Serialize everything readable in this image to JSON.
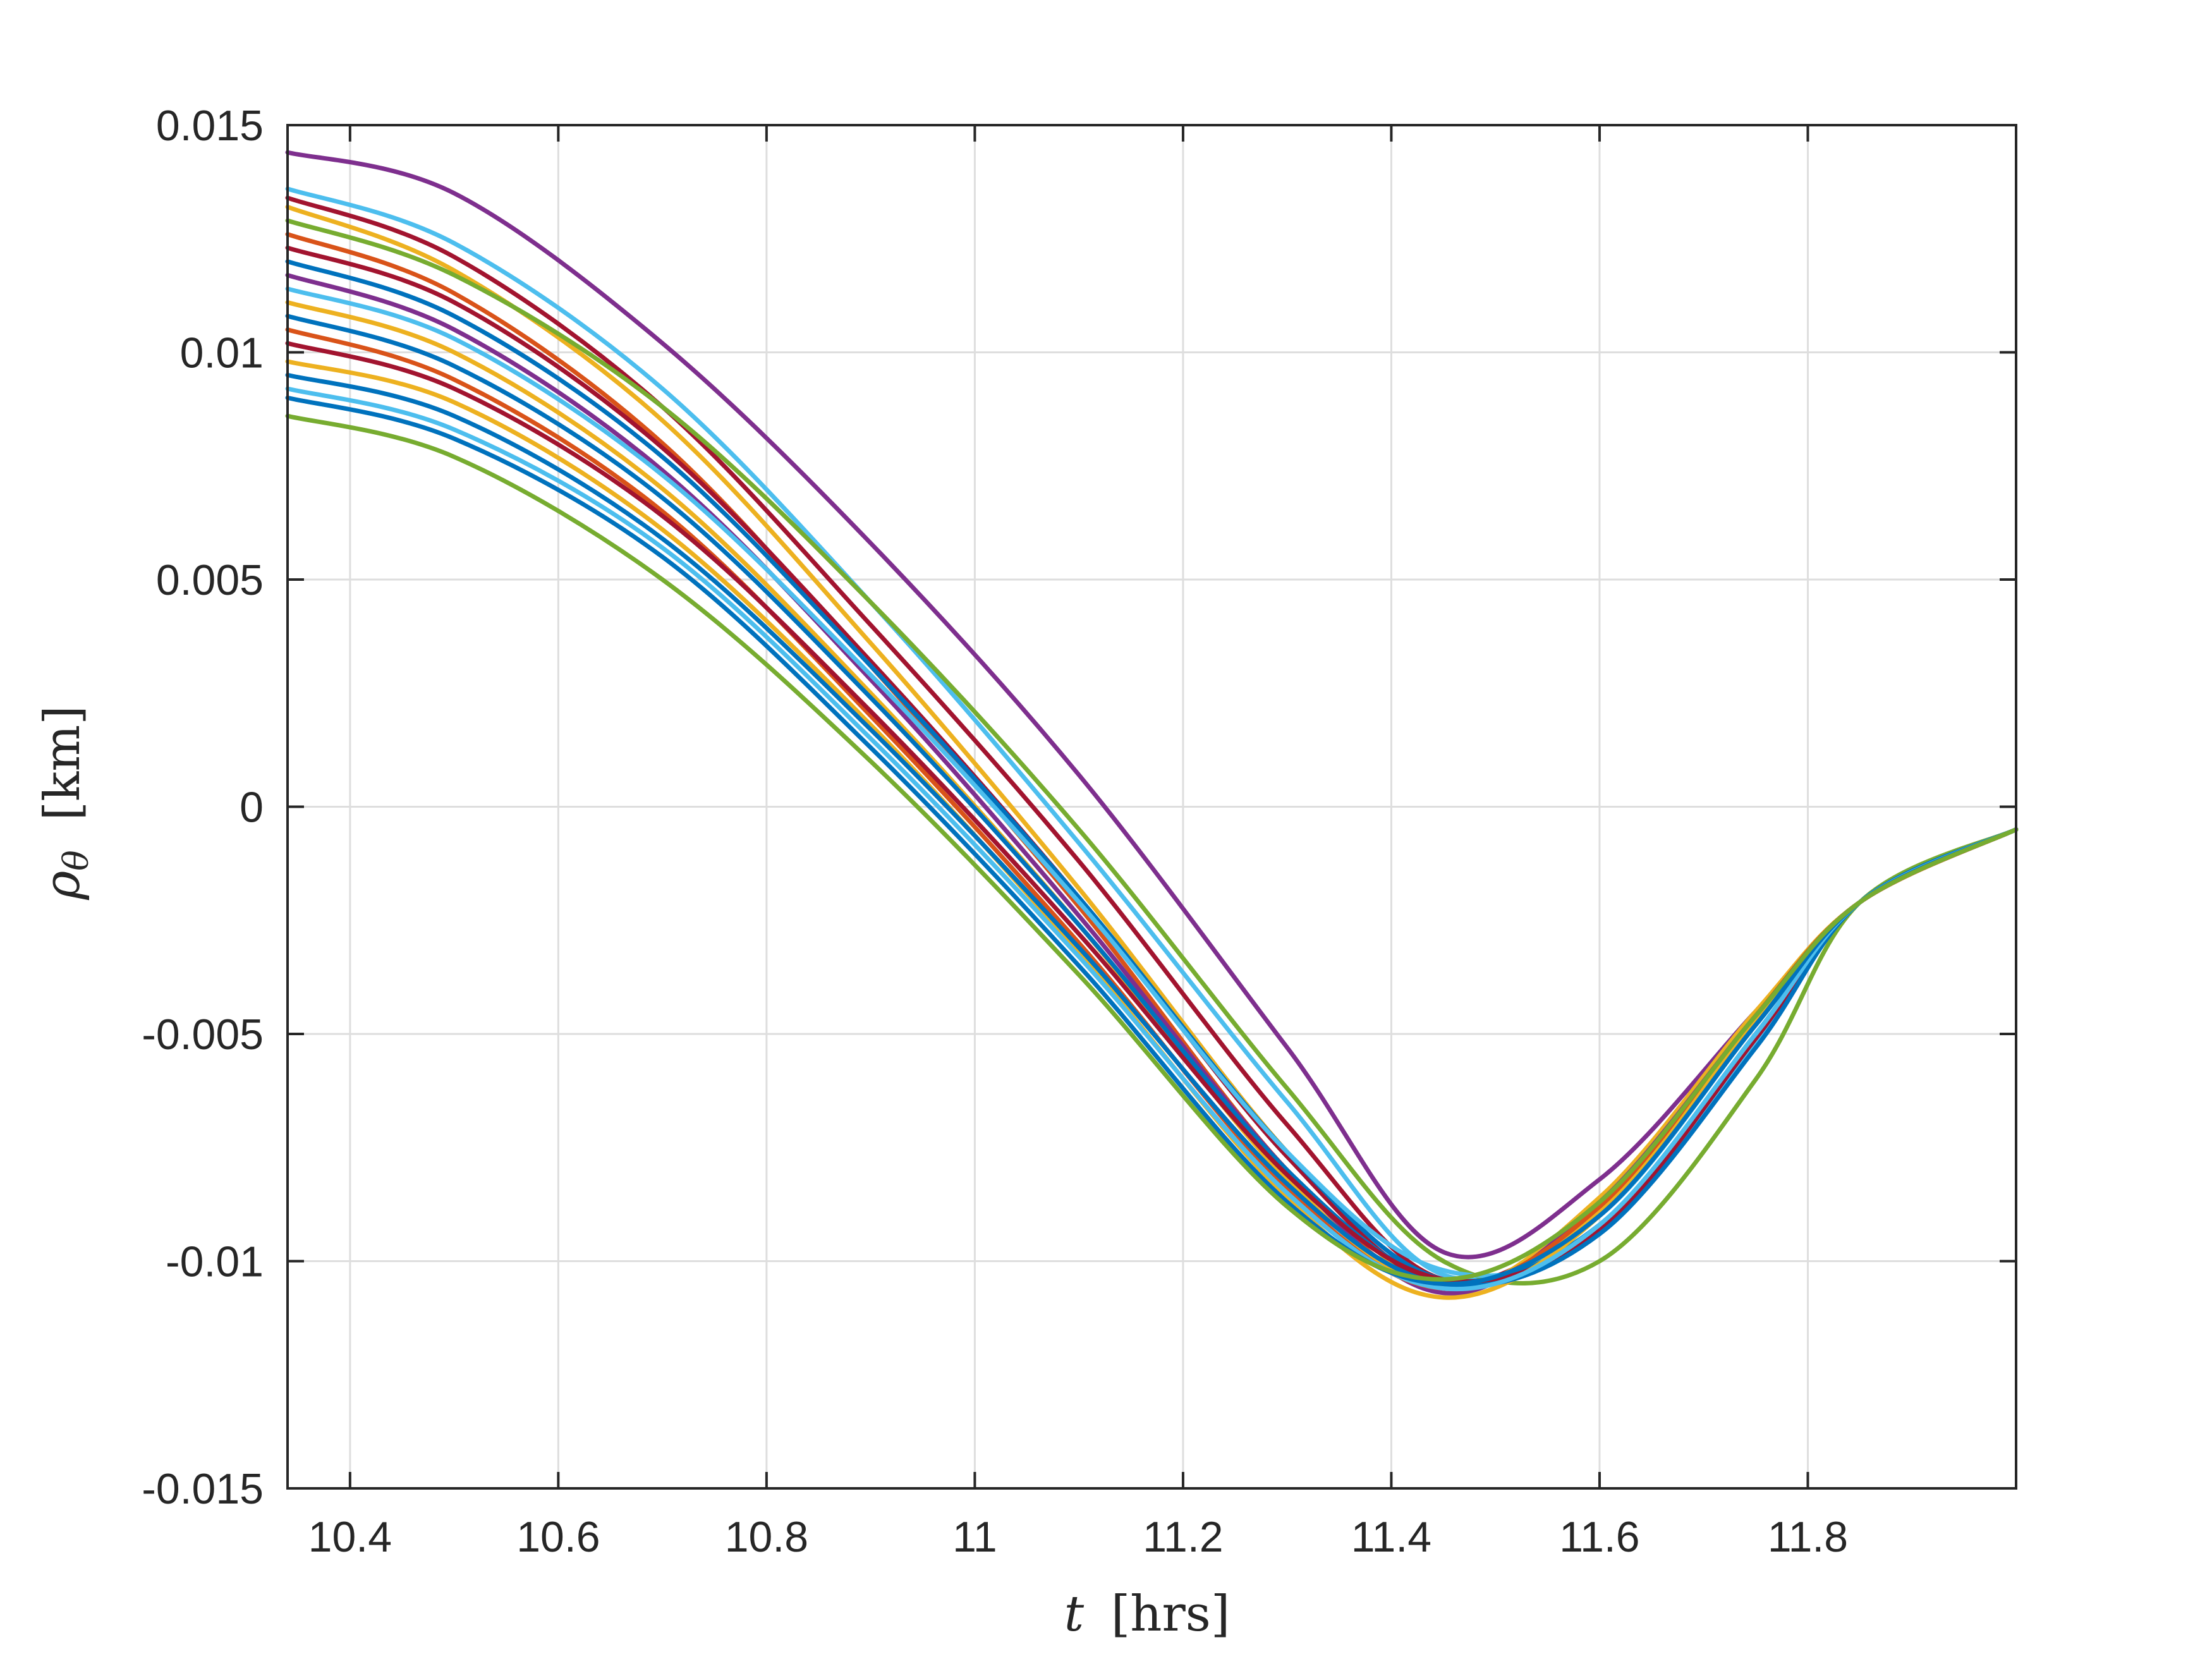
{
  "chart_data": {
    "type": "line",
    "xlabel_var": "t",
    "xlabel_unit": "[hrs]",
    "ylabel_var": "ρ",
    "ylabel_sub": "θ",
    "ylabel_unit": "[km]",
    "xlim": [
      10.34,
      12.0
    ],
    "ylim": [
      -0.015,
      0.015
    ],
    "grid": true,
    "xticks": [
      10.4,
      10.6,
      10.8,
      11,
      11.2,
      11.4,
      11.6,
      11.8
    ],
    "xtick_labels": [
      "10.4",
      "10.6",
      "10.8",
      "11",
      "11.2",
      "11.4",
      "11.6",
      "11.8"
    ],
    "yticks": [
      0.015,
      0.01,
      0.005,
      0,
      -0.005,
      -0.01,
      -0.015
    ],
    "ytick_labels": [
      "0.015",
      "0.01",
      "0.005",
      "0",
      "-0.005",
      "-0.01",
      "-0.015"
    ],
    "colors": [
      "#0072BD",
      "#D95319",
      "#EDB120",
      "#7E2F8E",
      "#77AC30",
      "#4DBEEE",
      "#A2142F"
    ],
    "series": [
      {
        "x": [
          10.34,
          10.5,
          10.7,
          10.9,
          11.1,
          11.3,
          11.45,
          11.6,
          11.75,
          11.85,
          12.0
        ],
        "y": [
          0.0144,
          0.0135,
          0.0102,
          0.0058,
          0.0007,
          -0.0053,
          -0.0098,
          -0.0082,
          -0.0045,
          -0.0021,
          -0.0005
        ],
        "color": "#7E2F8E"
      },
      {
        "x": [
          10.34,
          10.5,
          10.7,
          10.9,
          11.1,
          11.3,
          11.45,
          11.6,
          11.75,
          11.85,
          12.0
        ],
        "y": [
          0.0136,
          0.0124,
          0.0092,
          0.0045,
          -0.0008,
          -0.0065,
          -0.0103,
          -0.009,
          -0.0048,
          -0.0021,
          -0.0005
        ],
        "color": "#4DBEEE"
      },
      {
        "x": [
          10.34,
          10.5,
          10.7,
          10.9,
          11.1,
          11.3,
          11.45,
          11.6,
          11.75,
          11.85,
          12.0
        ],
        "y": [
          0.0134,
          0.0121,
          0.0088,
          0.004,
          -0.0012,
          -0.007,
          -0.0104,
          -0.0088,
          -0.0046,
          -0.0021,
          -0.0005
        ],
        "color": "#A2142F"
      },
      {
        "x": [
          10.34,
          10.5,
          10.7,
          10.9,
          11.1,
          11.3,
          11.45,
          11.6,
          11.75,
          11.85,
          12.0
        ],
        "y": [
          0.0132,
          0.0118,
          0.0085,
          0.0036,
          -0.0018,
          -0.0076,
          -0.0106,
          -0.0086,
          -0.0045,
          -0.0021,
          -0.0005
        ],
        "color": "#EDB120"
      },
      {
        "x": [
          10.34,
          10.5,
          10.7,
          10.9,
          11.1,
          11.3,
          11.45,
          11.6,
          11.75,
          11.85,
          12.0
        ],
        "y": [
          0.0129,
          0.0117,
          0.0088,
          0.0045,
          -0.0005,
          -0.0062,
          -0.01,
          -0.01,
          -0.006,
          -0.0021,
          -0.0005
        ],
        "color": "#77AC30"
      },
      {
        "x": [
          10.34,
          10.5,
          10.7,
          10.9,
          11.1,
          11.3,
          11.45,
          11.6,
          11.75,
          11.85,
          12.0
        ],
        "y": [
          0.0126,
          0.0113,
          0.008,
          0.0031,
          -0.0022,
          -0.008,
          -0.0106,
          -0.0088,
          -0.0046,
          -0.0021,
          -0.0005
        ],
        "color": "#D95319"
      },
      {
        "x": [
          10.34,
          10.5,
          10.7,
          10.9,
          11.1,
          11.3,
          11.45,
          11.6,
          11.75,
          11.85,
          12.0
        ],
        "y": [
          0.0123,
          0.0111,
          0.0079,
          0.0032,
          -0.002,
          -0.0077,
          -0.0105,
          -0.0089,
          -0.0046,
          -0.0021,
          -0.0005
        ],
        "color": "#A2142F"
      },
      {
        "x": [
          10.34,
          10.5,
          10.7,
          10.9,
          11.1,
          11.3,
          11.45,
          11.6,
          11.75,
          11.85,
          12.0
        ],
        "y": [
          0.012,
          0.0108,
          0.0077,
          0.0031,
          -0.002,
          -0.0076,
          -0.0104,
          -0.0092,
          -0.005,
          -0.0021,
          -0.0005
        ],
        "color": "#0072BD"
      },
      {
        "x": [
          10.34,
          10.5,
          10.7,
          10.9,
          11.1,
          11.3,
          11.45,
          11.6,
          11.75,
          11.85,
          12.0
        ],
        "y": [
          0.0117,
          0.0105,
          0.0074,
          0.0028,
          -0.0024,
          -0.008,
          -0.0107,
          -0.0087,
          -0.0046,
          -0.0021,
          -0.0005
        ],
        "color": "#7E2F8E"
      },
      {
        "x": [
          10.34,
          10.5,
          10.7,
          10.9,
          11.1,
          11.3,
          11.45,
          11.6,
          11.75,
          11.85,
          12.0
        ],
        "y": [
          0.0114,
          0.0103,
          0.0073,
          0.0029,
          -0.0021,
          -0.0076,
          -0.0102,
          -0.0094,
          -0.0052,
          -0.0021,
          -0.0005
        ],
        "color": "#4DBEEE"
      },
      {
        "x": [
          10.34,
          10.5,
          10.7,
          10.9,
          11.1,
          11.3,
          11.45,
          11.6,
          11.75,
          11.85,
          12.0
        ],
        "y": [
          0.0111,
          0.01,
          0.007,
          0.0025,
          -0.0026,
          -0.0082,
          -0.0106,
          -0.0089,
          -0.0047,
          -0.0021,
          -0.0005
        ],
        "color": "#EDB120"
      },
      {
        "x": [
          10.34,
          10.5,
          10.7,
          10.9,
          11.1,
          11.3,
          11.45,
          11.6,
          11.75,
          11.85,
          12.0
        ],
        "y": [
          0.0108,
          0.0097,
          0.0068,
          0.0024,
          -0.0026,
          -0.008,
          -0.0104,
          -0.0092,
          -0.005,
          -0.0021,
          -0.0005
        ],
        "color": "#0072BD"
      },
      {
        "x": [
          10.34,
          10.5,
          10.7,
          10.9,
          11.1,
          11.3,
          11.45,
          11.6,
          11.75,
          11.85,
          12.0
        ],
        "y": [
          0.0105,
          0.0094,
          0.0065,
          0.002,
          -0.003,
          -0.0084,
          -0.0106,
          -0.0088,
          -0.0046,
          -0.0021,
          -0.0005
        ],
        "color": "#D95319"
      },
      {
        "x": [
          10.34,
          10.5,
          10.7,
          10.9,
          11.1,
          11.3,
          11.45,
          11.6,
          11.75,
          11.85,
          12.0
        ],
        "y": [
          0.0102,
          0.0092,
          0.0064,
          0.0021,
          -0.0028,
          -0.0081,
          -0.0104,
          -0.0093,
          -0.0051,
          -0.0021,
          -0.0005
        ],
        "color": "#A2142F"
      },
      {
        "x": [
          10.34,
          10.5,
          10.7,
          10.9,
          11.1,
          11.3,
          11.45,
          11.6,
          11.75,
          11.85,
          12.0
        ],
        "y": [
          0.0098,
          0.0089,
          0.0061,
          0.0018,
          -0.0032,
          -0.0086,
          -0.0108,
          -0.009,
          -0.0047,
          -0.0021,
          -0.0005
        ],
        "color": "#EDB120"
      },
      {
        "x": [
          10.34,
          10.5,
          10.7,
          10.9,
          11.1,
          11.3,
          11.45,
          11.6,
          11.75,
          11.85,
          12.0
        ],
        "y": [
          0.0095,
          0.0086,
          0.0059,
          0.0017,
          -0.0031,
          -0.0083,
          -0.0105,
          -0.0094,
          -0.0053,
          -0.0021,
          -0.0005
        ],
        "color": "#0072BD"
      },
      {
        "x": [
          10.34,
          10.5,
          10.7,
          10.9,
          11.1,
          11.3,
          11.45,
          11.6,
          11.75,
          11.85,
          12.0
        ],
        "y": [
          0.0092,
          0.0083,
          0.0057,
          0.0015,
          -0.0033,
          -0.0085,
          -0.0106,
          -0.0092,
          -0.005,
          -0.0021,
          -0.0005
        ],
        "color": "#4DBEEE"
      },
      {
        "x": [
          10.34,
          10.5,
          10.7,
          10.9,
          11.1,
          11.3,
          11.45,
          11.6,
          11.75,
          11.85,
          12.0
        ],
        "y": [
          0.009,
          0.0081,
          0.0055,
          0.0013,
          -0.0035,
          -0.0087,
          -0.0105,
          -0.009,
          -0.0048,
          -0.0021,
          -0.0005
        ],
        "color": "#0072BD"
      },
      {
        "x": [
          10.34,
          10.5,
          10.7,
          10.9,
          11.1,
          11.3,
          11.45,
          11.6,
          11.75,
          11.85,
          12.0
        ],
        "y": [
          0.0086,
          0.0077,
          0.005,
          0.001,
          -0.0037,
          -0.0088,
          -0.0104,
          -0.0087,
          -0.0046,
          -0.0021,
          -0.0005
        ],
        "color": "#77AC30"
      }
    ]
  }
}
